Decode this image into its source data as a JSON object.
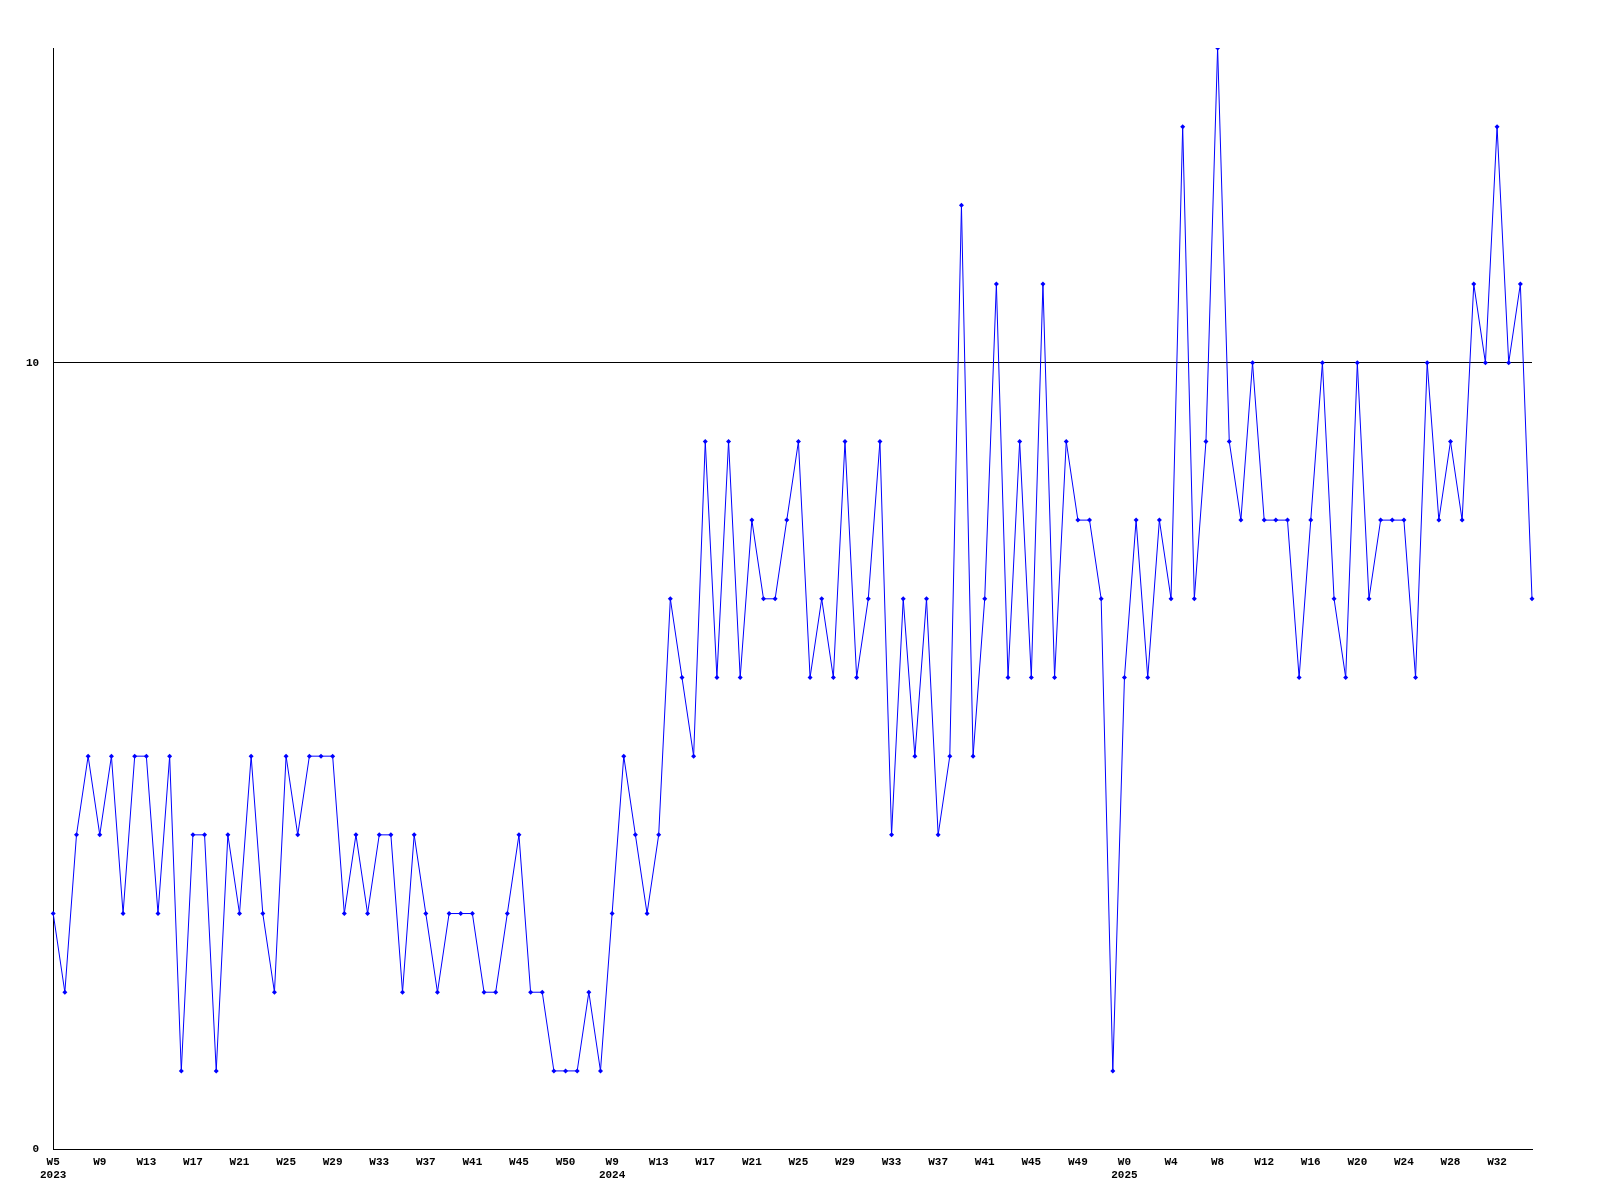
{
  "chart_data": {
    "type": "line",
    "categories": [
      "W5\n2023",
      null,
      null,
      null,
      "W9",
      null,
      null,
      null,
      "W13",
      null,
      null,
      null,
      "W17",
      null,
      null,
      null,
      "W21",
      null,
      null,
      null,
      "W25",
      null,
      null,
      null,
      "W29",
      null,
      null,
      null,
      "W33",
      null,
      null,
      null,
      "W37",
      null,
      null,
      null,
      "W41",
      null,
      null,
      null,
      "W45",
      null,
      null,
      null,
      "W50",
      null,
      null,
      null,
      "W9\n2024",
      null,
      null,
      null,
      "W13",
      null,
      null,
      null,
      "W17",
      null,
      null,
      null,
      "W21",
      null,
      null,
      null,
      "W25",
      null,
      null,
      null,
      "W29",
      null,
      null,
      null,
      "W33",
      null,
      null,
      null,
      "W37",
      null,
      null,
      null,
      "W41",
      null,
      null,
      null,
      "W45",
      null,
      null,
      null,
      "W49",
      null,
      null,
      null,
      "W0\n2025",
      null,
      null,
      null,
      "W4",
      null,
      null,
      null,
      "W8",
      null,
      null,
      null,
      "W12",
      null,
      null,
      null,
      "W16",
      null,
      null,
      null,
      "W20",
      null,
      null,
      null,
      "W24",
      null,
      null,
      null,
      "W28",
      null,
      null,
      null,
      "W32",
      null,
      null,
      null
    ],
    "series": [
      {
        "color": "#0000ff",
        "values": [
          3,
          2,
          4,
          5,
          4,
          5,
          3,
          5,
          5,
          3,
          5,
          1,
          4,
          4,
          1,
          4,
          3,
          5,
          3,
          2,
          5,
          4,
          5,
          5,
          5,
          3,
          4,
          3,
          4,
          4,
          2,
          4,
          3,
          2,
          3,
          3,
          3,
          2,
          2,
          3,
          4,
          2,
          2,
          1,
          1,
          1,
          2,
          1,
          3,
          5,
          4,
          3,
          4,
          7,
          6,
          5,
          9,
          6,
          9,
          6,
          8,
          7,
          7,
          8,
          9,
          6,
          7,
          6,
          9,
          6,
          7,
          9,
          4,
          7,
          5,
          7,
          4,
          5,
          12,
          5,
          7,
          11,
          6,
          9,
          6,
          11,
          6,
          9,
          8,
          8,
          7,
          1,
          6,
          8,
          6,
          8,
          7,
          13,
          7,
          9,
          14,
          9,
          8,
          10,
          8,
          8,
          8,
          6,
          8,
          10,
          7,
          6,
          10,
          7,
          8,
          8,
          8,
          6,
          10,
          8,
          9,
          8,
          11,
          10,
          13,
          10,
          11,
          7
        ]
      }
    ],
    "ylim": [
      0,
      14
    ],
    "yticks": [
      0,
      10
    ],
    "grid": "y",
    "marker": "diamond",
    "line_style": "solid",
    "legend": false
  }
}
